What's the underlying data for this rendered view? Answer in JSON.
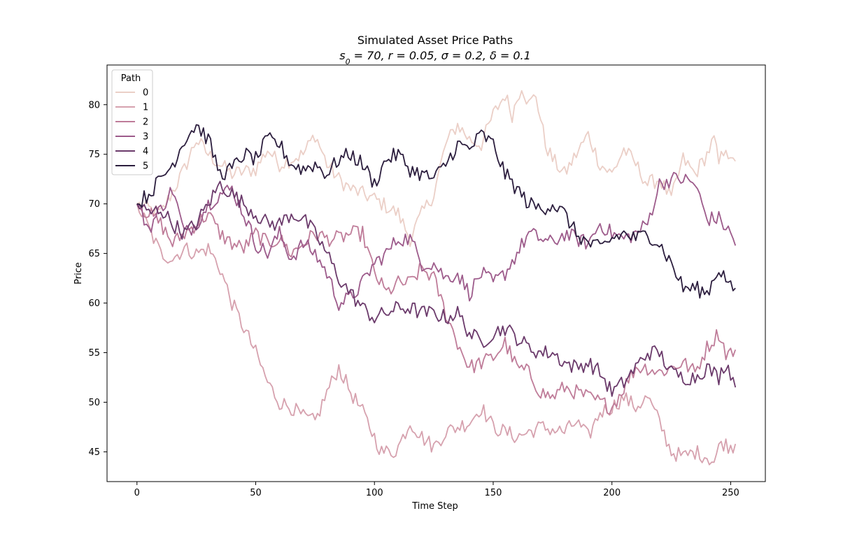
{
  "chart_data": {
    "type": "line",
    "title": "Simulated Asset Price Paths",
    "subtitle": "s0 = 70, r = 0.05, σ = 0.2, δ = 0.1",
    "subtitle_parts": {
      "s": "s",
      "sub": "0",
      "rest": " = 70, r = 0.05, σ = 0.2, δ = 0.1"
    },
    "xlabel": "Time Step",
    "ylabel": "Price",
    "xlim": [
      -12.6,
      264.6
    ],
    "ylim": [
      42.0,
      84.0
    ],
    "xticks": [
      0,
      50,
      100,
      150,
      200,
      250
    ],
    "yticks": [
      45,
      50,
      55,
      60,
      65,
      70,
      75,
      80
    ],
    "grid": false,
    "legend": {
      "title": "Path",
      "placement": "top-left"
    },
    "num_steps": 252,
    "series": [
      {
        "name": "0",
        "color": "#ebcfc7",
        "anchors": [
          [
            0,
            70
          ],
          [
            10,
            69
          ],
          [
            20,
            73.5
          ],
          [
            25,
            76.5
          ],
          [
            30,
            75
          ],
          [
            40,
            73
          ],
          [
            50,
            73.5
          ],
          [
            55,
            75.5
          ],
          [
            60,
            74
          ],
          [
            70,
            75
          ],
          [
            75,
            77
          ],
          [
            80,
            74
          ],
          [
            85,
            72.5
          ],
          [
            90,
            71.5
          ],
          [
            100,
            70.5
          ],
          [
            110,
            69
          ],
          [
            115,
            66.5
          ],
          [
            120,
            69
          ],
          [
            125,
            71
          ],
          [
            130,
            76
          ],
          [
            135,
            78
          ],
          [
            140,
            76.5
          ],
          [
            145,
            76
          ],
          [
            150,
            79
          ],
          [
            155,
            81
          ],
          [
            158,
            79
          ],
          [
            162,
            82
          ],
          [
            165,
            80
          ],
          [
            168,
            81
          ],
          [
            172,
            76
          ],
          [
            175,
            74.5
          ],
          [
            180,
            73
          ],
          [
            185,
            75
          ],
          [
            190,
            77
          ],
          [
            195,
            74
          ],
          [
            200,
            73
          ],
          [
            205,
            75.5
          ],
          [
            210,
            74
          ],
          [
            215,
            72
          ],
          [
            220,
            72.5
          ],
          [
            225,
            70.5
          ],
          [
            230,
            74.5
          ],
          [
            235,
            73
          ],
          [
            240,
            75
          ],
          [
            243,
            76.5
          ],
          [
            245,
            74
          ],
          [
            248,
            76
          ],
          [
            250,
            74
          ],
          [
            252,
            74.3
          ]
        ]
      },
      {
        "name": "1",
        "color": "#d6a1ae",
        "anchors": [
          [
            0,
            70
          ],
          [
            5,
            67.5
          ],
          [
            10,
            65
          ],
          [
            15,
            64.5
          ],
          [
            20,
            65.5
          ],
          [
            25,
            65
          ],
          [
            30,
            65.5
          ],
          [
            35,
            63.5
          ],
          [
            40,
            60
          ],
          [
            45,
            57.5
          ],
          [
            50,
            55
          ],
          [
            55,
            52
          ],
          [
            60,
            50
          ],
          [
            65,
            49.5
          ],
          [
            70,
            48.5
          ],
          [
            75,
            48
          ],
          [
            80,
            51
          ],
          [
            85,
            53.5
          ],
          [
            90,
            51
          ],
          [
            95,
            49
          ],
          [
            100,
            46.5
          ],
          [
            103,
            45
          ],
          [
            108,
            45
          ],
          [
            110,
            45.5
          ],
          [
            115,
            48
          ],
          [
            120,
            46.5
          ],
          [
            125,
            45.5
          ],
          [
            130,
            47
          ],
          [
            140,
            48
          ],
          [
            145,
            49.5
          ],
          [
            150,
            47.5
          ],
          [
            160,
            46.5
          ],
          [
            170,
            47.5
          ],
          [
            180,
            47
          ],
          [
            185,
            48
          ],
          [
            190,
            46.5
          ],
          [
            195,
            49
          ],
          [
            200,
            49.5
          ],
          [
            205,
            50.5
          ],
          [
            210,
            49.5
          ],
          [
            215,
            50.5
          ],
          [
            220,
            48
          ],
          [
            225,
            45
          ],
          [
            230,
            44.5
          ],
          [
            235,
            45
          ],
          [
            240,
            44.5
          ],
          [
            243,
            44
          ],
          [
            246,
            46
          ],
          [
            250,
            45.5
          ],
          [
            252,
            45.8
          ]
        ]
      },
      {
        "name": "2",
        "color": "#bf7c99",
        "anchors": [
          [
            0,
            70
          ],
          [
            5,
            69
          ],
          [
            10,
            68
          ],
          [
            15,
            66
          ],
          [
            20,
            67
          ],
          [
            25,
            68
          ],
          [
            30,
            69
          ],
          [
            35,
            67
          ],
          [
            40,
            66
          ],
          [
            45,
            65.5
          ],
          [
            50,
            67
          ],
          [
            55,
            66
          ],
          [
            60,
            66.5
          ],
          [
            65,
            65
          ],
          [
            70,
            66
          ],
          [
            75,
            67
          ],
          [
            80,
            66.5
          ],
          [
            85,
            66.5
          ],
          [
            90,
            67
          ],
          [
            95,
            67
          ],
          [
            100,
            63
          ],
          [
            105,
            61
          ],
          [
            110,
            62
          ],
          [
            115,
            62
          ],
          [
            120,
            63.5
          ],
          [
            125,
            62.5
          ],
          [
            130,
            59
          ],
          [
            135,
            56
          ],
          [
            140,
            53.5
          ],
          [
            145,
            54
          ],
          [
            150,
            54.5
          ],
          [
            155,
            56
          ],
          [
            160,
            53.5
          ],
          [
            165,
            53
          ],
          [
            170,
            51
          ],
          [
            175,
            50.5
          ],
          [
            180,
            51.5
          ],
          [
            185,
            51
          ],
          [
            190,
            50.5
          ],
          [
            195,
            50
          ],
          [
            200,
            49.5
          ],
          [
            205,
            51.5
          ],
          [
            210,
            53.5
          ],
          [
            215,
            53.5
          ],
          [
            220,
            53
          ],
          [
            225,
            53.5
          ],
          [
            230,
            54
          ],
          [
            235,
            53
          ],
          [
            240,
            55.5
          ],
          [
            245,
            57
          ],
          [
            248,
            55
          ],
          [
            250,
            55
          ],
          [
            252,
            55.3
          ]
        ]
      },
      {
        "name": "3",
        "color": "#9d5b8b",
        "anchors": [
          [
            0,
            70
          ],
          [
            5,
            67.5
          ],
          [
            10,
            69.5
          ],
          [
            15,
            71.5
          ],
          [
            20,
            67
          ],
          [
            25,
            68
          ],
          [
            30,
            70
          ],
          [
            35,
            71
          ],
          [
            40,
            71.5
          ],
          [
            45,
            69
          ],
          [
            50,
            66
          ],
          [
            55,
            65
          ],
          [
            60,
            67
          ],
          [
            65,
            64.5
          ],
          [
            70,
            66
          ],
          [
            75,
            65
          ],
          [
            80,
            63
          ],
          [
            85,
            60
          ],
          [
            90,
            60.5
          ],
          [
            95,
            62
          ],
          [
            100,
            64
          ],
          [
            105,
            65
          ],
          [
            110,
            66.5
          ],
          [
            115,
            66.5
          ],
          [
            120,
            64
          ],
          [
            125,
            64
          ],
          [
            130,
            62.5
          ],
          [
            135,
            63
          ],
          [
            140,
            61
          ],
          [
            145,
            63
          ],
          [
            150,
            62
          ],
          [
            155,
            63
          ],
          [
            160,
            65
          ],
          [
            165,
            67
          ],
          [
            170,
            66.5
          ],
          [
            175,
            66
          ],
          [
            180,
            67
          ],
          [
            185,
            66.5
          ],
          [
            190,
            66
          ],
          [
            195,
            68
          ],
          [
            200,
            67
          ],
          [
            205,
            66.5
          ],
          [
            210,
            67
          ],
          [
            215,
            68
          ],
          [
            220,
            72
          ],
          [
            225,
            72.5
          ],
          [
            230,
            72.5
          ],
          [
            235,
            72
          ],
          [
            240,
            68.5
          ],
          [
            245,
            68.5
          ],
          [
            250,
            67
          ],
          [
            252,
            65.8
          ]
        ]
      },
      {
        "name": "4",
        "color": "#6b3a6b",
        "anchors": [
          [
            0,
            70
          ],
          [
            5,
            69
          ],
          [
            10,
            69.5
          ],
          [
            15,
            68
          ],
          [
            20,
            67
          ],
          [
            25,
            68
          ],
          [
            30,
            70
          ],
          [
            35,
            72
          ],
          [
            40,
            71
          ],
          [
            45,
            70
          ],
          [
            50,
            69
          ],
          [
            55,
            68
          ],
          [
            60,
            68
          ],
          [
            65,
            69
          ],
          [
            70,
            68.5
          ],
          [
            75,
            67
          ],
          [
            80,
            65
          ],
          [
            85,
            62.5
          ],
          [
            90,
            61
          ],
          [
            95,
            59.5
          ],
          [
            100,
            58.5
          ],
          [
            105,
            59
          ],
          [
            110,
            59.5
          ],
          [
            115,
            59.5
          ],
          [
            120,
            59
          ],
          [
            125,
            59
          ],
          [
            130,
            58.5
          ],
          [
            135,
            59
          ],
          [
            140,
            57
          ],
          [
            145,
            56
          ],
          [
            150,
            57
          ],
          [
            155,
            57.5
          ],
          [
            160,
            56.5
          ],
          [
            165,
            55.5
          ],
          [
            170,
            55
          ],
          [
            175,
            55
          ],
          [
            180,
            54
          ],
          [
            185,
            53.5
          ],
          [
            190,
            54
          ],
          [
            195,
            53
          ],
          [
            200,
            51
          ],
          [
            205,
            52
          ],
          [
            210,
            53.5
          ],
          [
            215,
            55
          ],
          [
            220,
            55
          ],
          [
            225,
            53
          ],
          [
            230,
            52.5
          ],
          [
            235,
            52.5
          ],
          [
            240,
            53.5
          ],
          [
            245,
            52.5
          ],
          [
            248,
            54
          ],
          [
            250,
            53
          ],
          [
            252,
            51.5
          ]
        ]
      },
      {
        "name": "5",
        "color": "#2c1e3e",
        "anchors": [
          [
            0,
            70
          ],
          [
            5,
            71
          ],
          [
            10,
            72.5
          ],
          [
            15,
            74
          ],
          [
            20,
            76.5
          ],
          [
            25,
            78
          ],
          [
            30,
            76.5
          ],
          [
            35,
            73
          ],
          [
            40,
            73.5
          ],
          [
            45,
            75
          ],
          [
            50,
            74.5
          ],
          [
            55,
            76.5
          ],
          [
            60,
            76
          ],
          [
            65,
            74
          ],
          [
            70,
            73.5
          ],
          [
            75,
            74
          ],
          [
            80,
            73
          ],
          [
            85,
            74.5
          ],
          [
            90,
            75
          ],
          [
            95,
            74
          ],
          [
            100,
            72
          ],
          [
            105,
            74.5
          ],
          [
            110,
            75
          ],
          [
            115,
            73.5
          ],
          [
            120,
            73
          ],
          [
            125,
            72.5
          ],
          [
            130,
            74
          ],
          [
            135,
            76
          ],
          [
            140,
            75.5
          ],
          [
            145,
            77
          ],
          [
            150,
            76
          ],
          [
            155,
            73
          ],
          [
            160,
            71.5
          ],
          [
            165,
            70
          ],
          [
            170,
            69.5
          ],
          [
            175,
            70
          ],
          [
            180,
            69
          ],
          [
            185,
            67
          ],
          [
            190,
            66
          ],
          [
            195,
            65.5
          ],
          [
            200,
            66.5
          ],
          [
            205,
            67
          ],
          [
            210,
            66.5
          ],
          [
            215,
            67
          ],
          [
            220,
            66
          ],
          [
            225,
            64
          ],
          [
            230,
            61.5
          ],
          [
            235,
            61.5
          ],
          [
            240,
            61
          ],
          [
            245,
            63.5
          ],
          [
            248,
            62.5
          ],
          [
            250,
            61.5
          ],
          [
            252,
            61.5
          ]
        ]
      }
    ]
  }
}
